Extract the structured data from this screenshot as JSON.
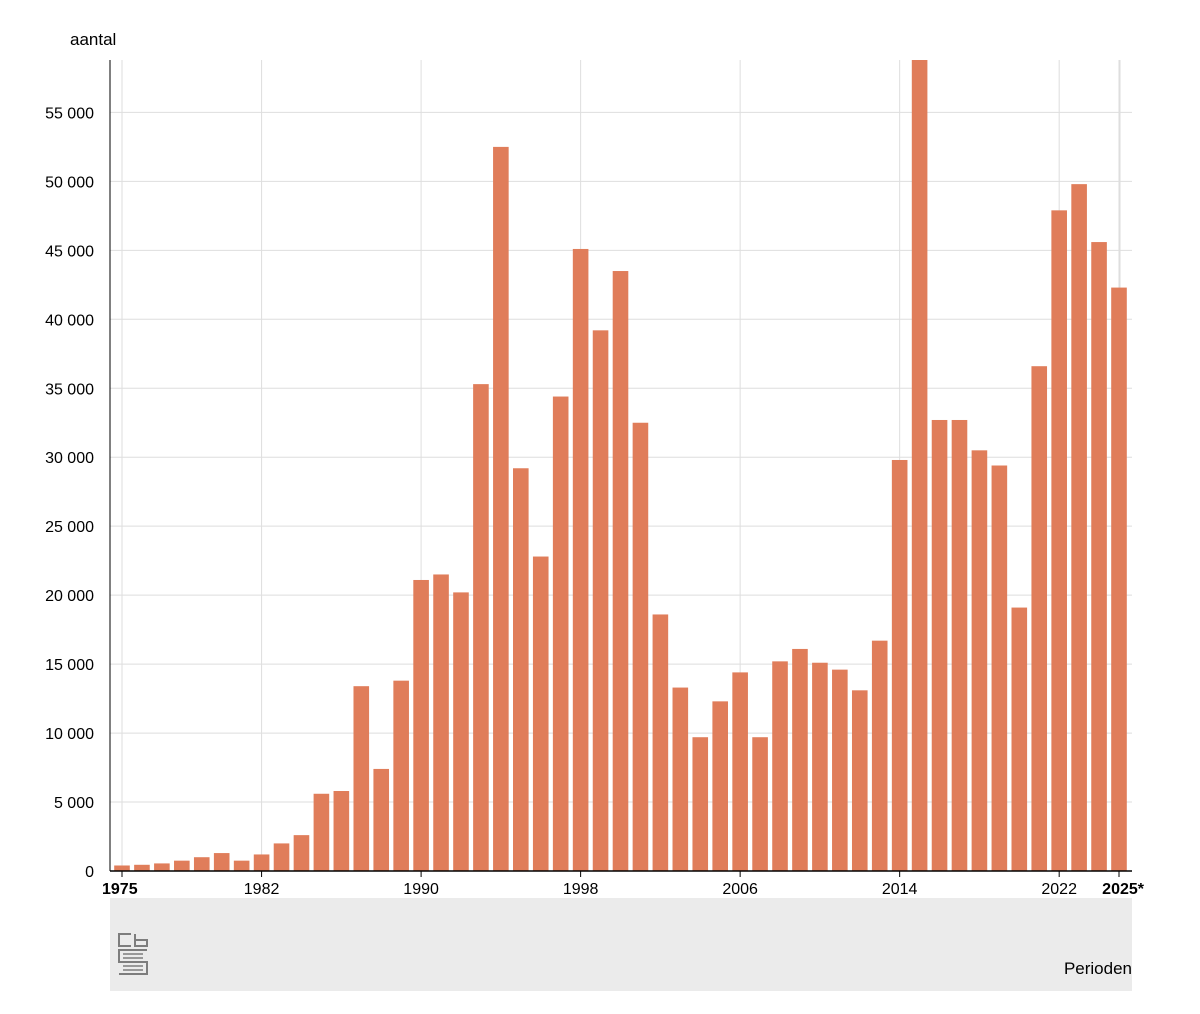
{
  "chart_data": {
    "type": "bar",
    "ylabel": "aantal",
    "xlabel": "Perioden",
    "ylim": [
      0,
      58800
    ],
    "yticks": [
      0,
      5000,
      10000,
      15000,
      20000,
      25000,
      30000,
      35000,
      40000,
      45000,
      50000,
      55000
    ],
    "ytick_labels": [
      "0",
      "5 000",
      "10 000",
      "15 000",
      "20 000",
      "25 000",
      "30 000",
      "35 000",
      "40 000",
      "45 000",
      "50 000",
      "55 000"
    ],
    "xtick_labels": [
      "1975",
      "1982",
      "1990",
      "1998",
      "2006",
      "2014",
      "2022",
      "2025*"
    ],
    "bold_xticks": [
      "1975",
      "2025*"
    ],
    "grid": true,
    "bar_color": "#e07d5a",
    "categories": [
      "1975",
      "1976",
      "1977",
      "1978",
      "1979",
      "1980",
      "1981",
      "1982",
      "1983",
      "1984",
      "1985",
      "1986",
      "1987",
      "1988",
      "1989",
      "1990",
      "1991",
      "1992",
      "1993",
      "1994",
      "1995",
      "1996",
      "1997",
      "1998",
      "1999",
      "2000",
      "2001",
      "2002",
      "2003",
      "2004",
      "2005",
      "2006",
      "2007",
      "2008",
      "2009",
      "2010",
      "2011",
      "2012",
      "2013",
      "2014",
      "2015",
      "2016",
      "2017",
      "2018",
      "2019",
      "2020",
      "2021",
      "2022",
      "2023",
      "2024",
      "2025*"
    ],
    "values": [
      400,
      450,
      550,
      750,
      1000,
      1300,
      750,
      1200,
      2000,
      2600,
      5600,
      5800,
      13400,
      7400,
      13800,
      21100,
      21500,
      20200,
      35300,
      52500,
      29200,
      22800,
      34400,
      45100,
      39200,
      43500,
      32500,
      18600,
      13300,
      9700,
      12300,
      14400,
      9700,
      15200,
      16100,
      15100,
      14600,
      13100,
      16700,
      29800,
      58800,
      32700,
      32700,
      30500,
      29400,
      19100,
      36600,
      47900,
      49800,
      45600,
      42300
    ]
  }
}
